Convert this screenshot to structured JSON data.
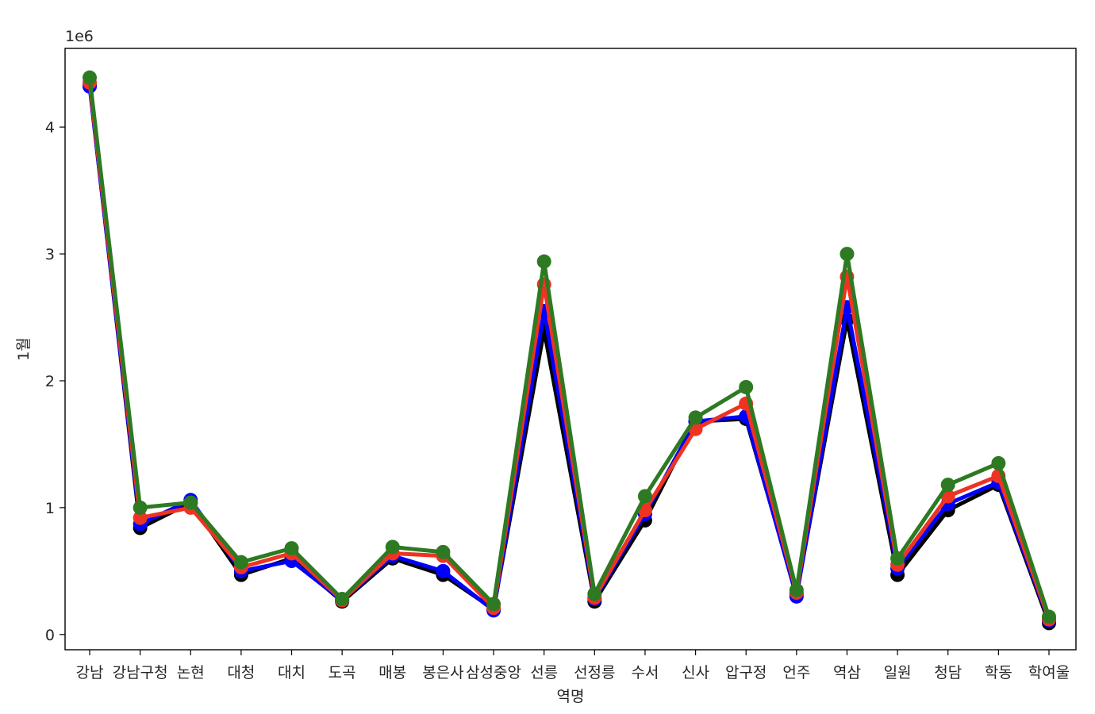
{
  "chart_data": {
    "type": "line",
    "title": "",
    "xlabel": "역명",
    "ylabel": "1월",
    "offset_label": "1e6",
    "y_scale_multiplier": 1000000,
    "ylim": [
      -0.12,
      4.62
    ],
    "yticks": [
      0,
      1,
      2,
      3,
      4
    ],
    "grid": false,
    "legend": "none",
    "categories": [
      "강남",
      "강남구청",
      "논현",
      "대청",
      "대치",
      "도곡",
      "매봉",
      "봉은사",
      "삼성중앙",
      "선릉",
      "선정릉",
      "수서",
      "신사",
      "압구정",
      "언주",
      "역삼",
      "일원",
      "청담",
      "학동",
      "학여울"
    ],
    "series": [
      {
        "color": "#000000",
        "values": [
          4.33,
          0.84,
          1.04,
          0.47,
          0.6,
          0.26,
          0.6,
          0.47,
          0.2,
          2.4,
          0.26,
          0.9,
          1.68,
          1.7,
          0.32,
          2.48,
          0.47,
          0.98,
          1.18,
          0.09
        ]
      },
      {
        "color": "#0000ff",
        "values": [
          4.32,
          0.87,
          1.06,
          0.5,
          0.58,
          0.27,
          0.62,
          0.5,
          0.19,
          2.55,
          0.28,
          0.95,
          1.68,
          1.72,
          0.3,
          2.58,
          0.52,
          1.03,
          1.2,
          0.11
        ]
      },
      {
        "color": "#ee3322",
        "values": [
          4.35,
          0.92,
          1.0,
          0.53,
          0.64,
          0.27,
          0.64,
          0.62,
          0.21,
          2.76,
          0.29,
          0.98,
          1.62,
          1.82,
          0.33,
          2.82,
          0.55,
          1.09,
          1.25,
          0.12
        ]
      },
      {
        "color": "#2d7a22",
        "values": [
          4.39,
          1.0,
          1.04,
          0.57,
          0.68,
          0.28,
          0.69,
          0.65,
          0.24,
          2.94,
          0.32,
          1.09,
          1.71,
          1.95,
          0.35,
          3.0,
          0.6,
          1.18,
          1.35,
          0.14
        ]
      }
    ]
  }
}
